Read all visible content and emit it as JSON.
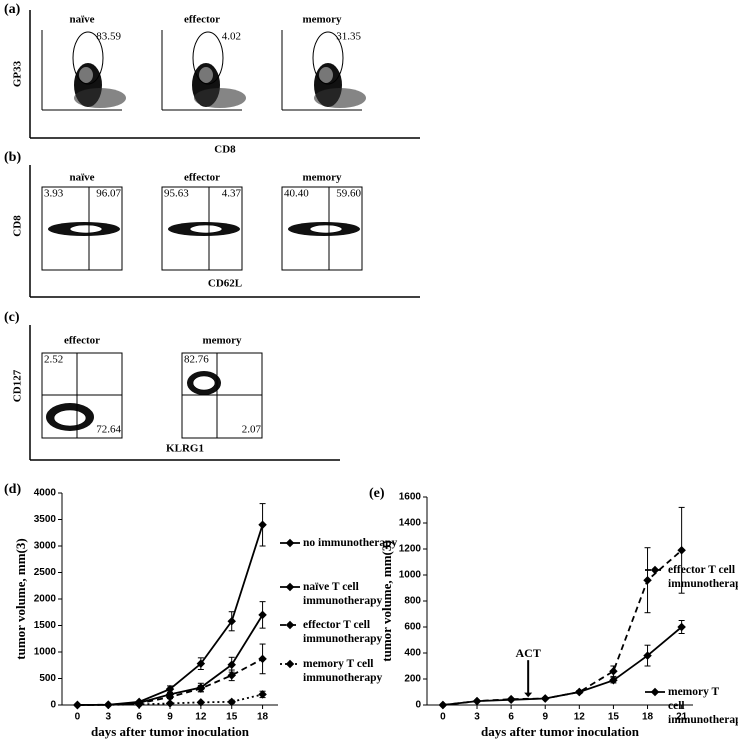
{
  "panels": [
    {
      "label": "(a)",
      "y_axis_label": "GP33",
      "x_axis_label": "CD8",
      "plots": [
        {
          "title": "naïve",
          "gates": [
            "83.59"
          ]
        },
        {
          "title": "effector",
          "gates": [
            "4.02"
          ]
        },
        {
          "title": "memory",
          "gates": [
            "31.35"
          ]
        }
      ]
    },
    {
      "label": "(b)",
      "y_axis_label": "CD8",
      "x_axis_label": "CD62L",
      "plots": [
        {
          "title": "naïve",
          "gates": [
            "3.93",
            "96.07"
          ]
        },
        {
          "title": "effector",
          "gates": [
            "95.63",
            "4.37"
          ]
        },
        {
          "title": "memory",
          "gates": [
            "40.40",
            "59.60"
          ]
        }
      ]
    },
    {
      "label": "(c)",
      "y_axis_label": "CD127",
      "x_axis_label": "KLRG1",
      "plots": [
        {
          "title": "effector",
          "gates": [
            "2.52",
            "72.64"
          ]
        },
        {
          "title": "memory",
          "gates": [
            "82.76",
            "2.07"
          ]
        }
      ]
    }
  ],
  "chart_data": [
    {
      "type": "line",
      "panel_label": "(d)",
      "x_label": "days after tumor inoculation",
      "y_label": "tumor volume, mm(3)",
      "x": [
        0,
        3,
        6,
        9,
        12,
        15,
        18
      ],
      "xlim": [
        -1.5,
        19.5
      ],
      "xticks": [
        0,
        3,
        6,
        9,
        12,
        15,
        18
      ],
      "ylim": [
        0,
        4000
      ],
      "yticks": [
        0,
        500,
        1000,
        1500,
        2000,
        2500,
        3000,
        3500,
        4000
      ],
      "series": [
        {
          "name": "no immunotherapy",
          "color": "#000000",
          "dash": "solid",
          "values": [
            0,
            5,
            60,
            300,
            780,
            1580,
            3400
          ],
          "errors": [
            0,
            0,
            0,
            60,
            110,
            180,
            400
          ]
        },
        {
          "name": "naïve T cell immunotherapy",
          "color": "#000000",
          "dash": "solid",
          "values": [
            0,
            5,
            40,
            200,
            330,
            760,
            1700
          ],
          "errors": [
            0,
            0,
            0,
            40,
            80,
            140,
            250
          ]
        },
        {
          "name": "effector T cell immunotherapy",
          "color": "#000000",
          "dash": "dashed",
          "values": [
            0,
            5,
            30,
            150,
            310,
            560,
            870
          ],
          "errors": [
            0,
            0,
            0,
            30,
            60,
            100,
            280
          ]
        },
        {
          "name": "memory T cell immunotherapy",
          "color": "#000000",
          "dash": "dotted",
          "values": [
            0,
            3,
            10,
            30,
            50,
            60,
            200
          ],
          "errors": [
            0,
            0,
            0,
            0,
            0,
            30,
            60
          ]
        }
      ]
    },
    {
      "type": "line",
      "panel_label": "(e)",
      "x_label": "days after tumor inoculation",
      "y_label": "tumor volume, mm(3)",
      "x": [
        0,
        3,
        6,
        9,
        12,
        15,
        18,
        21
      ],
      "xlim": [
        -1.4,
        22
      ],
      "xticks": [
        0,
        3,
        6,
        9,
        12,
        15,
        18,
        21
      ],
      "ylim": [
        0,
        1600
      ],
      "yticks": [
        0,
        200,
        400,
        600,
        800,
        1000,
        1200,
        1400,
        1600
      ],
      "annotation": "ACT",
      "series": [
        {
          "name": "effector T cell immunotherapy",
          "color": "#000000",
          "dash": "dashed",
          "values": [
            0,
            30,
            45,
            50,
            100,
            260,
            960,
            1190
          ],
          "errors": [
            0,
            5,
            5,
            5,
            10,
            40,
            250,
            330
          ]
        },
        {
          "name": "memory T cell immunotherapy",
          "color": "#000000",
          "dash": "solid",
          "values": [
            0,
            30,
            40,
            50,
            100,
            190,
            380,
            600
          ],
          "errors": [
            0,
            5,
            5,
            5,
            10,
            20,
            80,
            50
          ]
        }
      ]
    }
  ]
}
